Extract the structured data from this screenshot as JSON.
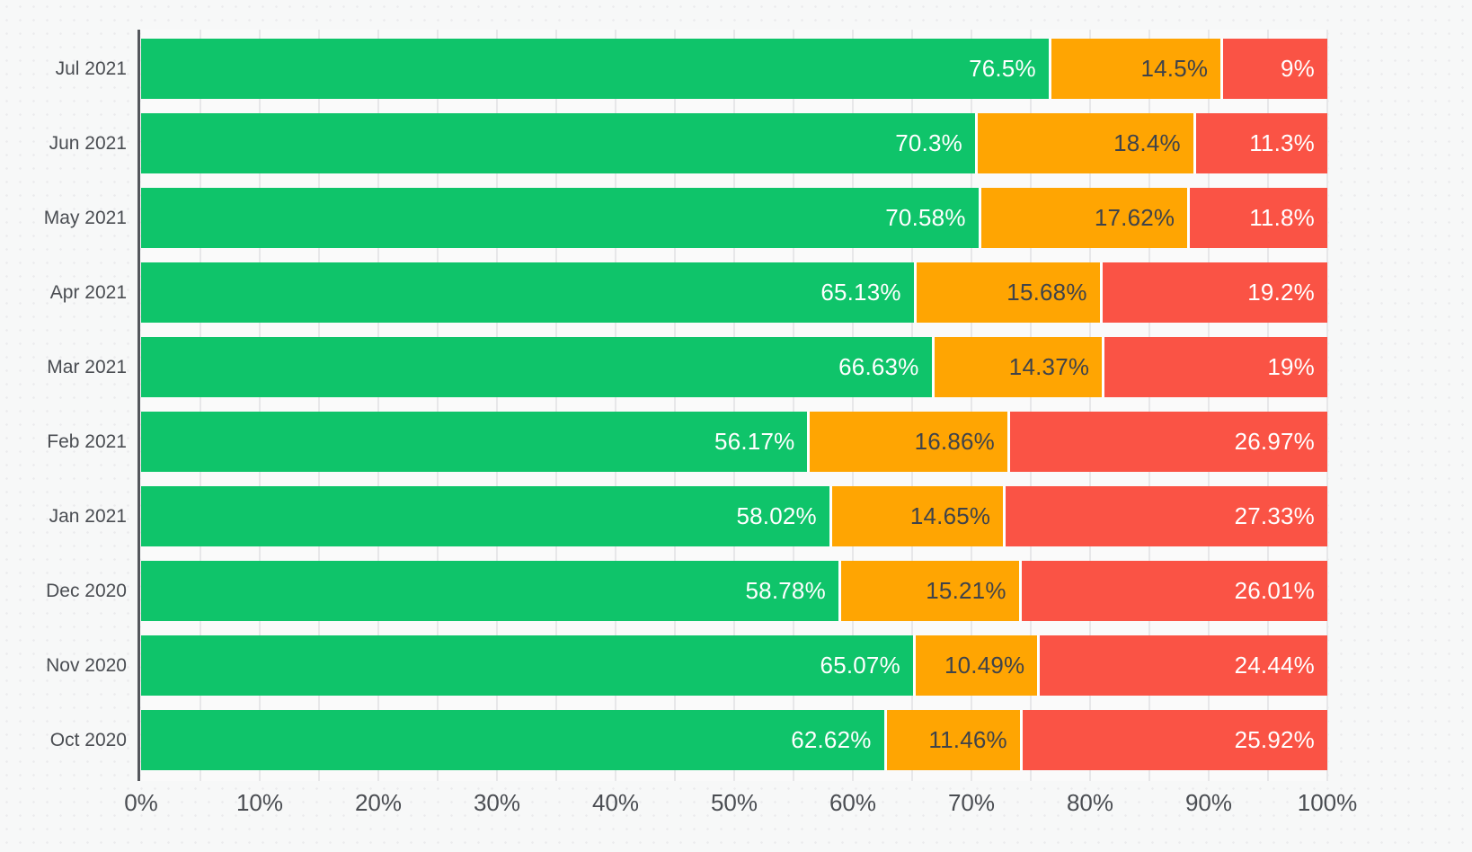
{
  "colors": {
    "background": "#f7f8f8",
    "plot_background": "#fafafa",
    "axis_line": "#54575c",
    "axis_text": "#4a4d52",
    "gridline": "#e7e7e9",
    "segment_separator": "#ffffff"
  },
  "chart_data": {
    "type": "bar",
    "orientation": "horizontal",
    "stacked": true,
    "title": "",
    "xlabel": "",
    "ylabel": "",
    "xlim": [
      0,
      100
    ],
    "legend": "none",
    "grid": {
      "vertical_step_percent": 5,
      "color": "#e7e7e9"
    },
    "categories": [
      "Jul 2021",
      "Jun 2021",
      "May 2021",
      "Apr 2021",
      "Mar 2021",
      "Feb 2021",
      "Jan 2021",
      "Dec 2020",
      "Nov 2020",
      "Oct 2020"
    ],
    "x_ticks": [
      "0%",
      "10%",
      "20%",
      "30%",
      "40%",
      "50%",
      "60%",
      "70%",
      "80%",
      "90%",
      "100%"
    ],
    "series": [
      {
        "name": "green",
        "color": "#0fc46a",
        "label_color": "#ffffff",
        "values": [
          76.5,
          70.3,
          70.58,
          65.13,
          66.63,
          56.17,
          58.02,
          58.78,
          65.07,
          62.62
        ],
        "labels": [
          "76.5%",
          "70.3%",
          "70.58%",
          "65.13%",
          "66.63%",
          "56.17%",
          "58.02%",
          "58.78%",
          "65.07%",
          "62.62%"
        ]
      },
      {
        "name": "orange",
        "color": "#ffa502",
        "label_color": "#3f434a",
        "values": [
          14.5,
          18.4,
          17.62,
          15.68,
          14.37,
          16.86,
          14.65,
          15.21,
          10.49,
          11.46
        ],
        "labels": [
          "14.5%",
          "18.4%",
          "17.62%",
          "15.68%",
          "14.37%",
          "16.86%",
          "14.65%",
          "15.21%",
          "10.49%",
          "11.46%"
        ]
      },
      {
        "name": "red",
        "color": "#fa5345",
        "label_color": "#ffffff",
        "values": [
          9,
          11.3,
          11.8,
          19.2,
          19,
          26.97,
          27.33,
          26.01,
          24.44,
          25.92
        ],
        "labels": [
          "9%",
          "11.3%",
          "11.8%",
          "19.2%",
          "19%",
          "26.97%",
          "27.33%",
          "26.01%",
          "24.44%",
          "25.92%"
        ]
      }
    ]
  }
}
